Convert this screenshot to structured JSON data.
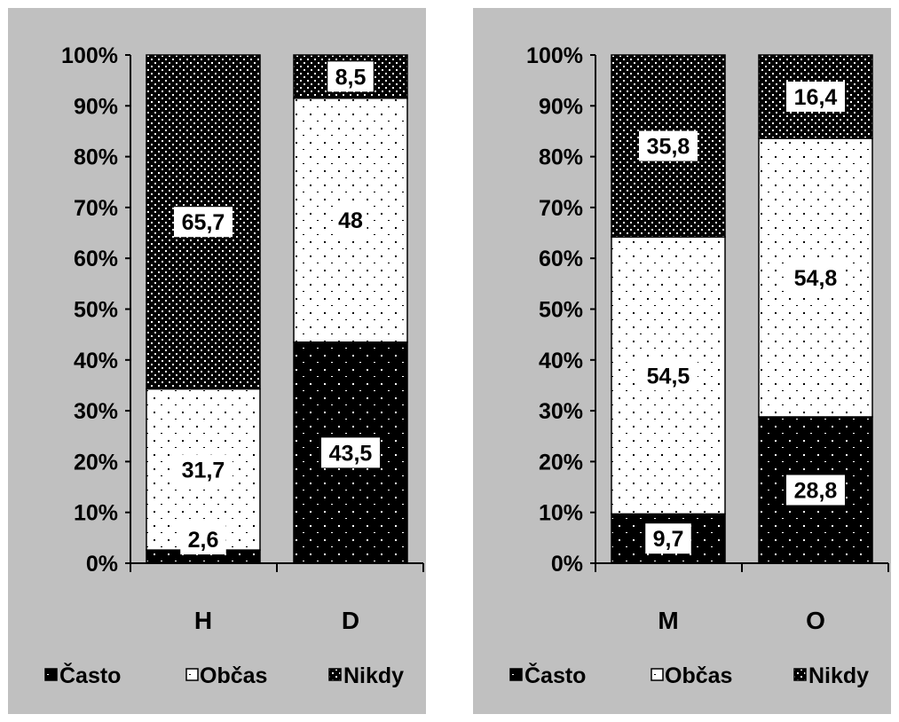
{
  "chart_data": [
    {
      "type": "bar",
      "stacked": "percent",
      "categories": [
        "H",
        "D"
      ],
      "series": [
        {
          "name": "Často",
          "values": [
            2.6,
            43.5
          ],
          "labels": [
            "2,6",
            "43,5"
          ],
          "pattern": "black-dots"
        },
        {
          "name": "Občas",
          "values": [
            31.7,
            48
          ],
          "labels": [
            "31,7",
            "48"
          ],
          "pattern": "white-dots"
        },
        {
          "name": "Nikdy",
          "values": [
            65.7,
            8.5
          ],
          "labels": [
            "65,7",
            "8,5"
          ],
          "pattern": "black-dense-dots"
        }
      ],
      "y_ticks": [
        "0%",
        "10%",
        "20%",
        "30%",
        "40%",
        "50%",
        "60%",
        "70%",
        "80%",
        "90%",
        "100%"
      ],
      "ylim": [
        0,
        100
      ],
      "grid": false,
      "legend_position": "bottom"
    },
    {
      "type": "bar",
      "stacked": "percent",
      "categories": [
        "M",
        "O"
      ],
      "series": [
        {
          "name": "Často",
          "values": [
            9.7,
            28.8
          ],
          "labels": [
            "9,7",
            "28,8"
          ],
          "pattern": "black-dots"
        },
        {
          "name": "Občas",
          "values": [
            54.5,
            54.8
          ],
          "labels": [
            "54,5",
            "54,8"
          ],
          "pattern": "white-dots"
        },
        {
          "name": "Nikdy",
          "values": [
            35.8,
            16.4
          ],
          "labels": [
            "35,8",
            "16,4"
          ],
          "pattern": "black-dense-dots"
        }
      ],
      "y_ticks": [
        "0%",
        "10%",
        "20%",
        "30%",
        "40%",
        "50%",
        "60%",
        "70%",
        "80%",
        "90%",
        "100%"
      ],
      "ylim": [
        0,
        100
      ],
      "grid": false,
      "legend_position": "bottom"
    }
  ],
  "colors": {
    "background": "#c0c0c0",
    "bar_dark": "#000000",
    "bar_light": "#ffffff",
    "text": "#000000"
  }
}
